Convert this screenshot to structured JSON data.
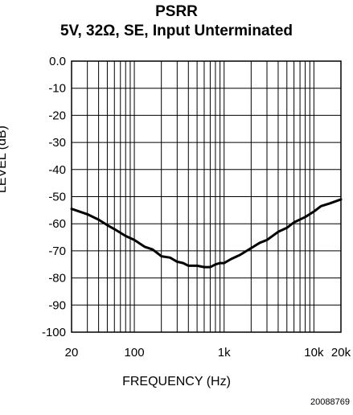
{
  "chart_data": {
    "type": "line",
    "title": "PSRR",
    "subtitle": "5V, 32Ω, SE, Input Unterminated",
    "xlabel": "FREQUENCY (Hz)",
    "ylabel": "LEVEL (dB)",
    "figure_id": "20088769",
    "xscale": "log",
    "xlim": [
      20,
      20000
    ],
    "ylim": [
      -100,
      0
    ],
    "grid": true,
    "x_tick_labels": [
      "20",
      "100",
      "1k",
      "10k",
      "20k"
    ],
    "x_tick_values": [
      20,
      100,
      1000,
      10000,
      20000
    ],
    "y_tick_labels": [
      "0.0",
      "-10",
      "-20",
      "-30",
      "-40",
      "-50",
      "-60",
      "-70",
      "-80",
      "-90",
      "-100"
    ],
    "y_tick_values": [
      0,
      -10,
      -20,
      -30,
      -40,
      -50,
      -60,
      -70,
      -80,
      -90,
      -100
    ],
    "series": [
      {
        "x": [
          20,
          30,
          40,
          50,
          60,
          80,
          100,
          130,
          160,
          200,
          250,
          300,
          350,
          400,
          450,
          500,
          600,
          700,
          800,
          900,
          1000,
          1200,
          1500,
          2000,
          2500,
          3000,
          4000,
          5000,
          6000,
          8000,
          10000,
          12000,
          15000,
          20000
        ],
        "y": [
          -54.5,
          -56.5,
          -58.5,
          -60.5,
          -62,
          -64.5,
          -66,
          -68.5,
          -69.5,
          -72,
          -72.5,
          -74,
          -74.5,
          -75.5,
          -75.5,
          -75.5,
          -76,
          -76,
          -75,
          -74.5,
          -74.5,
          -73,
          -71.5,
          -69,
          -67,
          -66,
          -63,
          -61.5,
          -59.5,
          -57.5,
          -55.5,
          -53.5,
          -52.5,
          -51
        ]
      }
    ]
  }
}
